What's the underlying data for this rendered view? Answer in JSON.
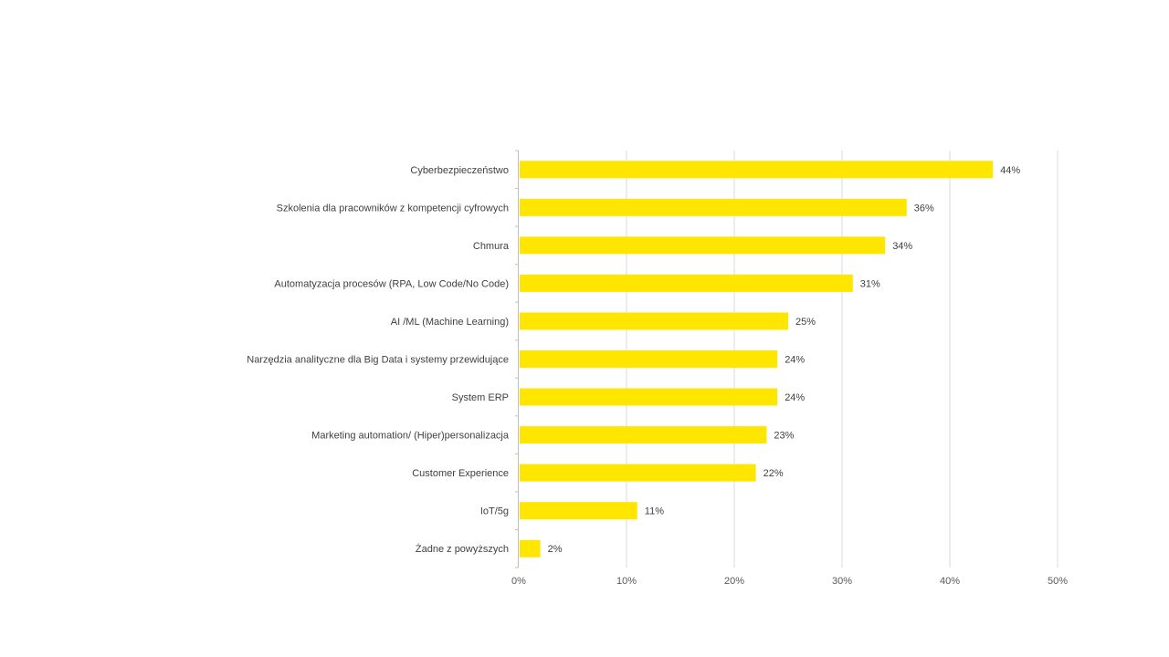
{
  "chart_data": {
    "type": "bar",
    "orientation": "horizontal",
    "title": "",
    "xlabel": "",
    "ylabel": "",
    "categories": [
      "Cyberbezpieczeństwo",
      "Szkolenia dla pracowników z kompetencji cyfrowych",
      "Chmura",
      "Automatyzacja procesów (RPA, Low Code/No Code)",
      "AI /ML (Machine Learning)",
      "Narzędzia analityczne dla Big Data i systemy przewidujące",
      "System ERP",
      "Marketing automation/ (Hiper)personalizacja",
      "Customer Experience",
      "IoT/5g",
      "Żadne z powyższych"
    ],
    "values": [
      44,
      36,
      34,
      31,
      25,
      24,
      24,
      23,
      22,
      11,
      2
    ],
    "value_labels": [
      "44%",
      "36%",
      "34%",
      "31%",
      "25%",
      "24%",
      "24%",
      "23%",
      "22%",
      "11%",
      "2%"
    ],
    "xlim": [
      0,
      50
    ],
    "xticks": [
      0,
      10,
      20,
      30,
      40,
      50
    ],
    "xtick_labels": [
      "0%",
      "10%",
      "20%",
      "30%",
      "40%",
      "50%"
    ],
    "grid": true,
    "legend": "none",
    "bar_color": "#FFE600"
  }
}
